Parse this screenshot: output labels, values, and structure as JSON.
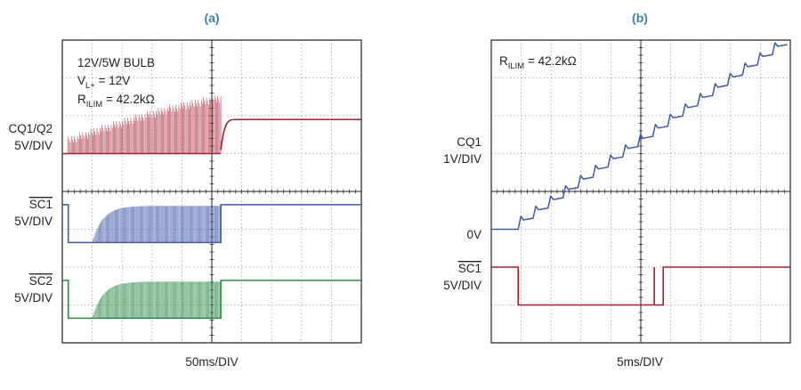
{
  "colors": {
    "cq_trace": "#a31f34",
    "sc_trace": "#3d5aa8",
    "sc2_trace": "#2e8b47",
    "grid": "#8a8a8a",
    "frame": "#231f20",
    "panel_title": "#3a84a6"
  },
  "chart_data": [
    {
      "type": "line",
      "panel": "(a)",
      "title": "(a)",
      "xlabel": "50ms/DIV",
      "grid": true,
      "divisions": {
        "x": 10,
        "y": 8
      },
      "annotation": {
        "line1": "12V/5W BULB",
        "line2_main": "V",
        "line2_sub": "L+",
        "line2_rest": " = 12V",
        "line3_main": "R",
        "line3_sub": "ILIM",
        "line3_rest": " = 42.2kΩ"
      },
      "channels": [
        {
          "name_line1": "CQ1/Q2",
          "name_line2": "5V/DIV",
          "overline": false,
          "description": "output voltage pulses with rising peak amplitude, then steady at 12V",
          "pulse_start_div": 0.2,
          "pulse_end_div": 5.3,
          "peak_rise_from_div": 1.45,
          "peak_rise_to_div": 2.55,
          "final_level_div": 2.1
        },
        {
          "name_line1": "SC1",
          "name_line2": "5V/DIV",
          "overline": true,
          "description": "fault output low, then pulsing, returns high",
          "low_start_div": 0.2,
          "pulse_start_div": 1.0,
          "high_return_div": 5.3
        },
        {
          "name_line1": "SC2",
          "name_line2": "5V/DIV",
          "overline": true,
          "description": "fault output low, then pulsing, returns high",
          "low_start_div": 0.2,
          "pulse_start_div": 1.0,
          "high_return_div": 5.3
        }
      ]
    },
    {
      "type": "line",
      "panel": "(b)",
      "title": "(b)",
      "xlabel": "5ms/DIV",
      "grid": true,
      "divisions": {
        "x": 10,
        "y": 8
      },
      "annotation": {
        "line1_main": "R",
        "line1_sub": "ILIM",
        "line1_rest": " = 42.2kΩ"
      },
      "channels": [
        {
          "name_line1": "CQ1",
          "name_line2": "1V/DIV",
          "ground_label": "0V",
          "overline": false,
          "description": "staircase ramp of output voltage",
          "steps": 18,
          "start_div": 0.9,
          "step_width_div": 0.5,
          "step_height_div": 0.27
        },
        {
          "name_line1": "SC1",
          "name_line2": "5V/DIV",
          "overline": true,
          "description": "fault output low during ramp",
          "low_start_div": 0.9,
          "glitch_div": 5.45,
          "high_return_div": 5.75
        }
      ]
    }
  ]
}
